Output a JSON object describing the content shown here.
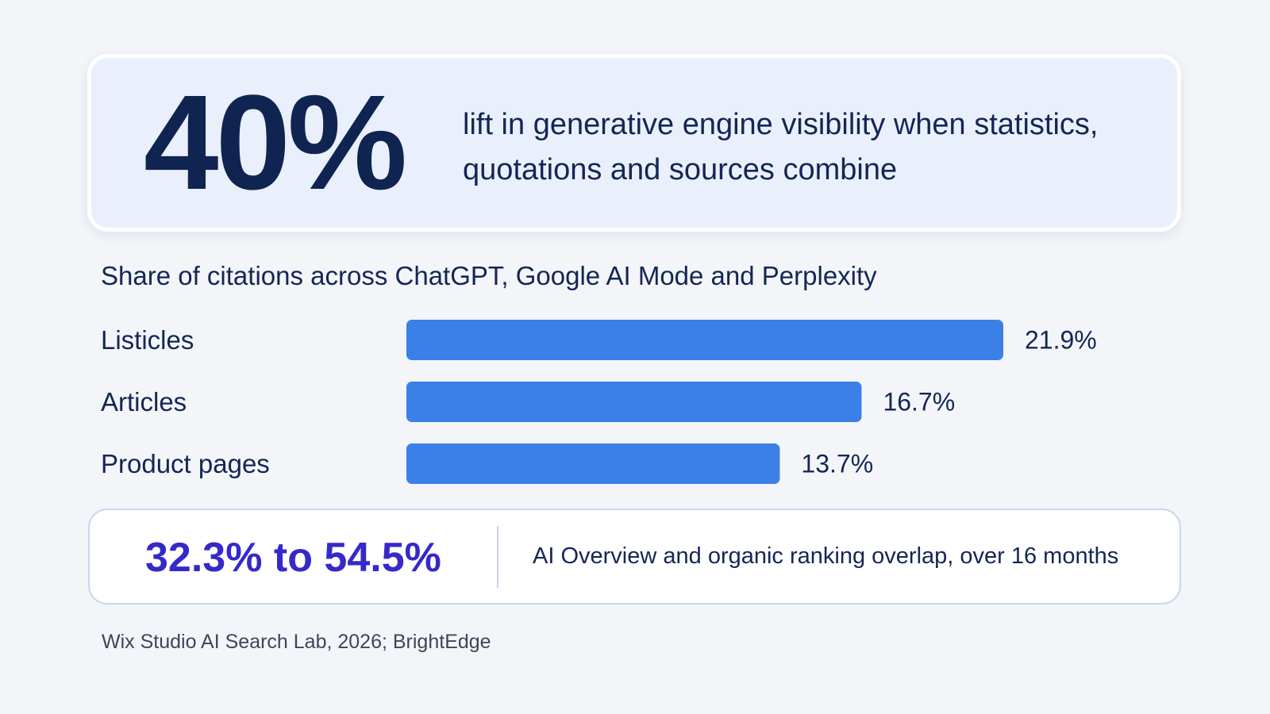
{
  "hero": {
    "stat": "40%",
    "description": "lift in generative engine visibility when statistics, quotations and sources combine"
  },
  "chart_data": {
    "type": "bar",
    "orientation": "horizontal",
    "title": "Share of citations across ChatGPT, Google AI Mode and Perplexity",
    "categories": [
      "Listicles",
      "Articles",
      "Product pages"
    ],
    "values": [
      21.9,
      16.7,
      13.7
    ],
    "value_labels": [
      "21.9%",
      "16.7%",
      "13.7%"
    ],
    "unit": "%",
    "xlim": [
      0,
      21.9
    ],
    "grid": false,
    "legend": "none",
    "bar_color": "#3a80e7"
  },
  "range": {
    "value": "32.3% to 54.5%",
    "description": "AI Overview and organic ranking overlap, over 16 months"
  },
  "source": "Wix Studio AI Search Lab, 2026; BrightEdge",
  "colors": {
    "background": "#f3f5f9",
    "hero_card": "#e9f0fb",
    "primary_text": "#102452",
    "accent_range": "#3529c9",
    "bar": "#3a80e7"
  }
}
